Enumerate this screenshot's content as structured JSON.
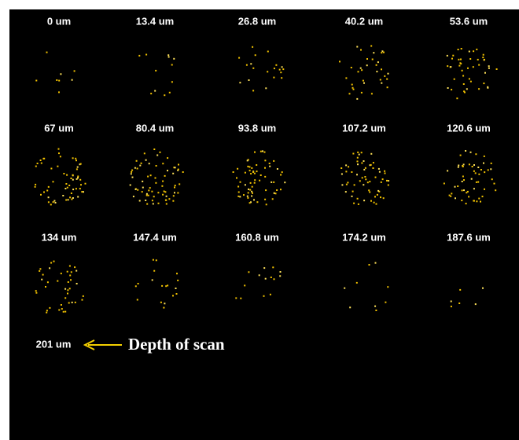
{
  "panels": [
    {
      "label": "0 um"
    },
    {
      "label": "13.4 um"
    },
    {
      "label": "26.8 um"
    },
    {
      "label": "40.2 um"
    },
    {
      "label": "53.6 um"
    },
    {
      "label": "67 um"
    },
    {
      "label": "80.4 um"
    },
    {
      "label": "93.8 um"
    },
    {
      "label": "107.2 um"
    },
    {
      "label": "120.6 um"
    },
    {
      "label": "134 um"
    },
    {
      "label": "147.4 um"
    },
    {
      "label": "160.8 um"
    },
    {
      "label": "174.2 um"
    },
    {
      "label": "187.6 um"
    }
  ],
  "final_depth": {
    "label": "201 um"
  },
  "annotation": {
    "text": "Depth of scan"
  }
}
